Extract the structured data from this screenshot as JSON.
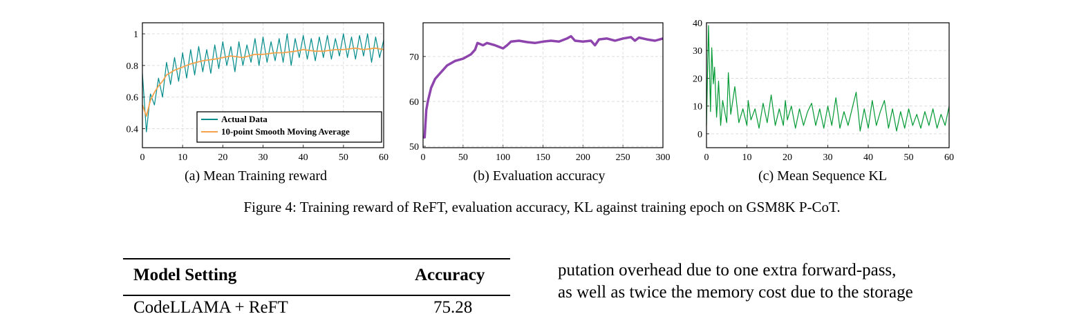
{
  "figure": {
    "caption": "Figure 4: Training reward of ReFT, evaluation accuracy, KL against training epoch on GSM8K P-CoT.",
    "subcaptions": [
      "(a) Mean Training reward",
      "(b) Evaluation accuracy",
      "(c) Mean Sequence KL"
    ]
  },
  "chart_data": [
    {
      "type": "line",
      "title": "(a) Mean Training reward",
      "xlim": [
        0,
        60
      ],
      "ylim": [
        0.28,
        1.07
      ],
      "xticks": [
        0,
        10,
        20,
        30,
        40,
        50,
        60
      ],
      "yticks": [
        0.4,
        0.6,
        0.8,
        1
      ],
      "ytick_labels": [
        "0.4",
        "0.6",
        "0.8",
        "1"
      ],
      "grid": true,
      "legend": "bottom-right",
      "series": [
        {
          "name": "Actual Data",
          "color": "#008b8b",
          "x": [
            0,
            1,
            2,
            3,
            4,
            5,
            6,
            7,
            8,
            9,
            10,
            11,
            12,
            13,
            14,
            15,
            16,
            17,
            18,
            19,
            20,
            21,
            22,
            23,
            24,
            25,
            26,
            27,
            28,
            29,
            30,
            31,
            32,
            33,
            34,
            35,
            36,
            37,
            38,
            39,
            40,
            41,
            42,
            43,
            44,
            45,
            46,
            47,
            48,
            49,
            50,
            51,
            52,
            53,
            54,
            55,
            56,
            57,
            58,
            59,
            60
          ],
          "y": [
            0.75,
            0.38,
            0.62,
            0.55,
            0.72,
            0.6,
            0.82,
            0.68,
            0.85,
            0.7,
            0.88,
            0.72,
            0.9,
            0.74,
            0.92,
            0.76,
            0.9,
            0.75,
            0.93,
            0.78,
            0.95,
            0.8,
            0.92,
            0.76,
            0.95,
            0.8,
            0.93,
            0.82,
            0.97,
            0.8,
            0.98,
            0.82,
            0.95,
            0.83,
            0.97,
            0.82,
            1.0,
            0.8,
            0.97,
            0.85,
            0.99,
            0.84,
            0.97,
            0.83,
            0.98,
            0.85,
            0.99,
            0.84,
            0.97,
            0.86,
            1.0,
            0.85,
            0.98,
            0.84,
            0.99,
            0.86,
            1.0,
            0.82,
            0.98,
            0.85,
            0.96
          ]
        },
        {
          "name": "10-point Smooth Moving Average",
          "color": "#f7a14a",
          "x": [
            0,
            1,
            2,
            3,
            4,
            5,
            6,
            8,
            10,
            12,
            15,
            18,
            20,
            22,
            25,
            28,
            30,
            33,
            35,
            38,
            40,
            43,
            45,
            48,
            50,
            53,
            55,
            58,
            60
          ],
          "y": [
            0.55,
            0.48,
            0.58,
            0.63,
            0.67,
            0.7,
            0.74,
            0.77,
            0.79,
            0.81,
            0.83,
            0.84,
            0.85,
            0.86,
            0.85,
            0.87,
            0.87,
            0.88,
            0.88,
            0.89,
            0.9,
            0.89,
            0.89,
            0.9,
            0.9,
            0.91,
            0.9,
            0.91,
            0.9
          ]
        }
      ]
    },
    {
      "type": "line",
      "title": "(b) Evaluation accuracy",
      "xlim": [
        0,
        300
      ],
      "ylim": [
        49.7,
        77.5
      ],
      "xticks": [
        0,
        50,
        100,
        150,
        200,
        250,
        300
      ],
      "yticks": [
        50,
        60,
        70
      ],
      "grid": true,
      "series": [
        {
          "color": "#8e44ad",
          "x": [
            0,
            2,
            4,
            6,
            10,
            15,
            20,
            25,
            30,
            40,
            50,
            60,
            65,
            68,
            75,
            80,
            90,
            100,
            105,
            110,
            120,
            130,
            140,
            150,
            160,
            170,
            180,
            185,
            190,
            200,
            210,
            215,
            220,
            230,
            240,
            250,
            260,
            265,
            270,
            280,
            290,
            300
          ],
          "y": [
            52,
            52,
            58,
            60,
            63,
            65,
            66,
            67,
            68,
            69,
            69.5,
            70.5,
            71.5,
            73,
            72.5,
            73,
            72.5,
            71.8,
            72.5,
            73.3,
            73.5,
            73.2,
            73,
            73.3,
            73.5,
            73.3,
            74,
            74.5,
            73.5,
            73.3,
            73.5,
            72.5,
            73.8,
            74,
            73.5,
            74,
            74.3,
            73.5,
            74.2,
            73.8,
            73.5,
            74
          ]
        }
      ]
    },
    {
      "type": "line",
      "title": "(c) Mean Sequence KL",
      "xlim": [
        0,
        60
      ],
      "ylim": [
        -5,
        40
      ],
      "xticks": [
        0,
        10,
        20,
        30,
        40,
        50,
        60
      ],
      "yticks": [
        0,
        10,
        20,
        30,
        40
      ],
      "grid": true,
      "series": [
        {
          "color": "#009933",
          "x": [
            0,
            0.5,
            1,
            1.3,
            1.7,
            2,
            2.5,
            3,
            3.5,
            4,
            5,
            5.4,
            6,
            7,
            8,
            9,
            10,
            10.3,
            11,
            12,
            13,
            14,
            15,
            16,
            17,
            18,
            19,
            19.5,
            20,
            21,
            22,
            23,
            24,
            25,
            26,
            27,
            28,
            29,
            30,
            31,
            32,
            33,
            34,
            35,
            36,
            37,
            38,
            39,
            40,
            41,
            42,
            43,
            44,
            45,
            46,
            47,
            48,
            49,
            50,
            51,
            52,
            53,
            54,
            55,
            56,
            57,
            58,
            59,
            60
          ],
          "y": [
            3,
            39,
            8,
            31,
            18,
            24,
            6,
            19,
            3,
            12,
            4,
            22,
            7,
            17,
            4,
            9,
            3,
            12,
            5,
            9,
            2,
            11,
            4,
            14,
            3,
            9,
            3,
            12,
            5,
            10,
            2,
            9,
            3,
            8,
            11,
            3,
            9,
            2,
            10,
            3,
            13,
            2,
            8,
            3,
            9,
            15,
            1,
            9,
            2,
            12,
            3,
            8,
            12,
            2,
            9,
            1,
            8,
            2,
            9,
            3,
            7,
            2,
            8,
            3,
            9,
            2,
            7,
            3,
            10
          ]
        }
      ]
    }
  ],
  "table": {
    "headers": [
      "Model Setting",
      "Accuracy"
    ],
    "rows": [
      [
        "CodeLLAMA + ReFT",
        "75.28"
      ]
    ]
  },
  "paragraph": {
    "lines": [
      "putation overhead due to one extra forward-pass,",
      "as well as twice the memory cost due to the storage"
    ]
  }
}
